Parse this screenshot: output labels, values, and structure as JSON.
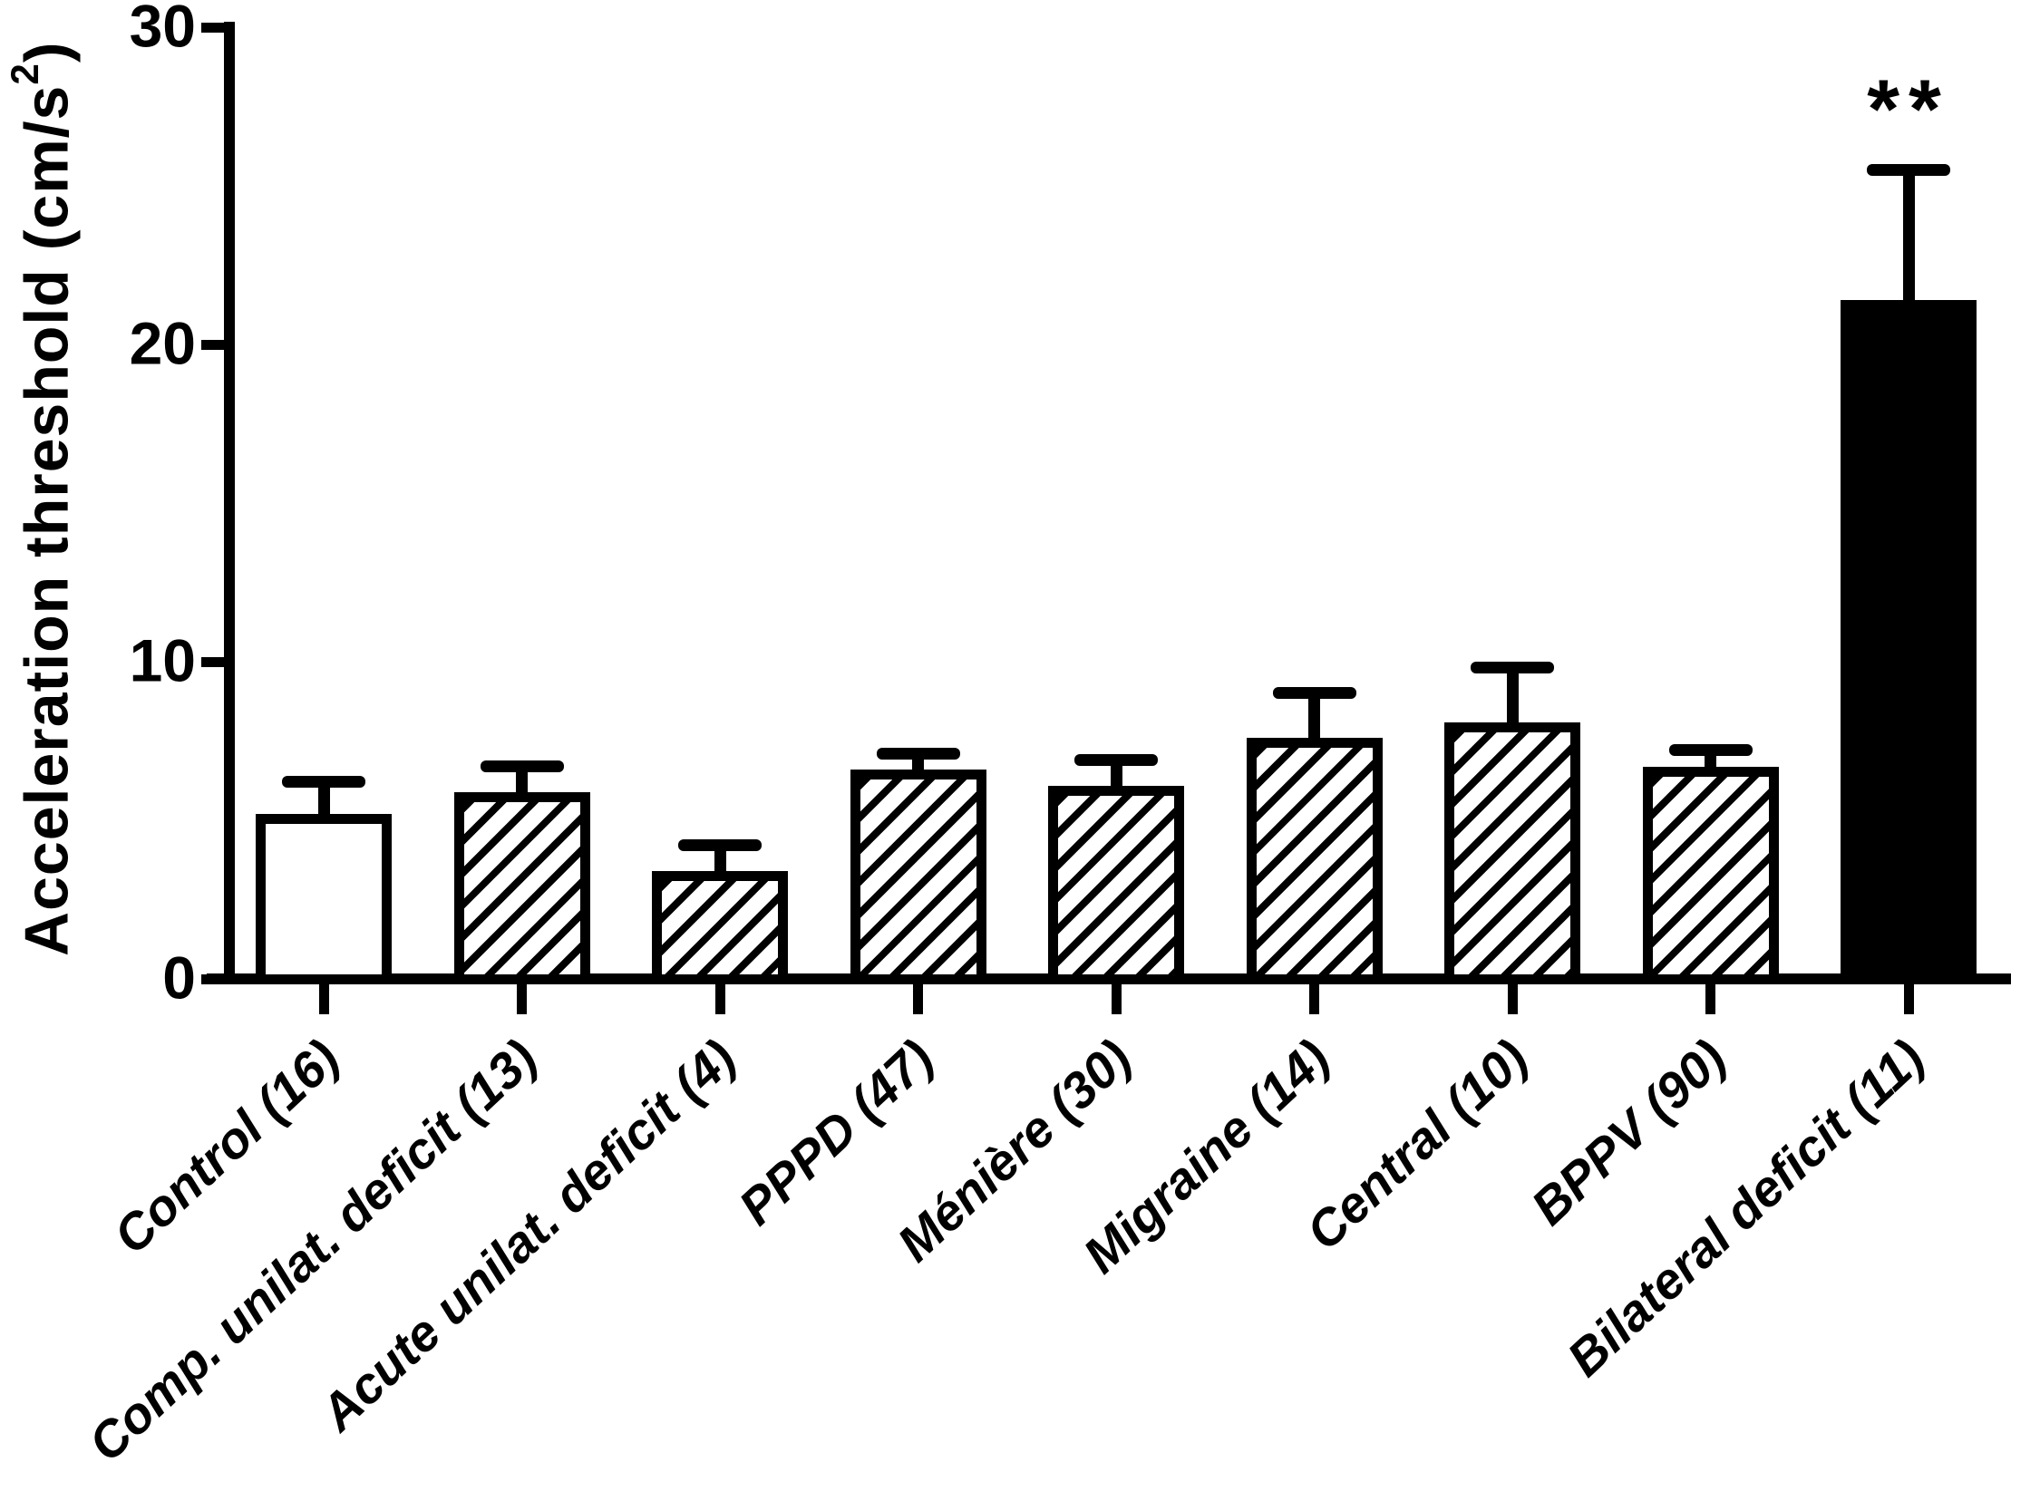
{
  "figure": {
    "ylabel_main": "Acceleration threshold (cm/s",
    "ylabel_sup": "2",
    "ylabel_close": ")"
  },
  "chart_data": {
    "type": "bar",
    "title": "",
    "xlabel": "",
    "ylabel": "Acceleration threshold (cm/s^2)",
    "ylim": [
      0,
      30
    ],
    "yticks": [
      0,
      10,
      20,
      30
    ],
    "grid": false,
    "legend": "none",
    "categories": [
      "Control (16)",
      "Comp. unilat. deficit (13)",
      "Acute unilat. deficit (4)",
      "PPPD (47)",
      "Ménière (30)",
      "Migraine (14)",
      "Central (10)",
      "BPPV (90)",
      "Bilateral deficit (11)"
    ],
    "values": [
      5.2,
      5.9,
      3.4,
      6.6,
      6.1,
      7.6,
      8.1,
      6.7,
      21.4
    ],
    "error_plus": [
      1.2,
      1.0,
      1.0,
      0.7,
      1.0,
      1.6,
      1.9,
      0.7,
      4.3
    ],
    "bar_fills": [
      "white",
      "hatch",
      "hatch",
      "hatch",
      "hatch",
      "hatch",
      "hatch",
      "hatch",
      "black"
    ],
    "significance": {
      "category_index": 8,
      "label": "**"
    },
    "colors": {
      "foreground": "#000000",
      "background": "#ffffff"
    }
  }
}
